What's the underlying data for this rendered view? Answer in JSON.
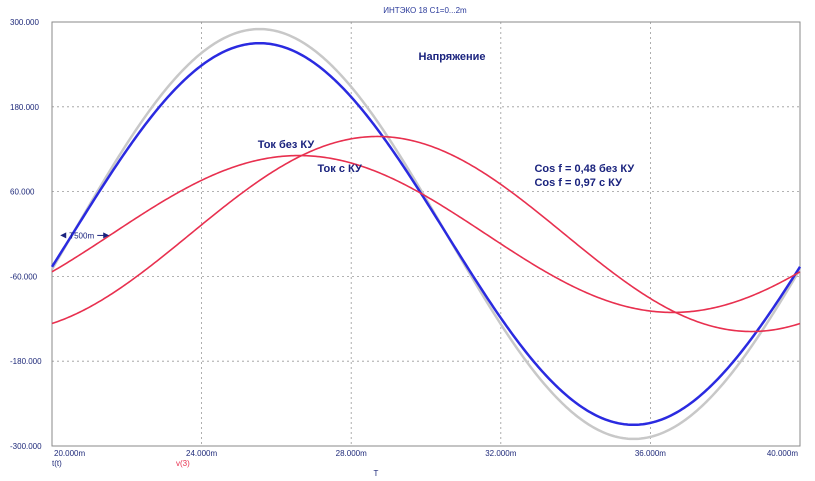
{
  "chart_data": {
    "type": "line",
    "title": "ИНТЭКО 18 С1=0...2m",
    "xlabel": "T",
    "x_unit_labels": [
      "t(t)",
      "v(3)"
    ],
    "xlim": [
      20.0,
      40.0
    ],
    "ylim": [
      -300,
      300
    ],
    "x_ticks": [
      20,
      24,
      28,
      32,
      36,
      40
    ],
    "x_tick_labels": [
      "20.000m",
      "24.000m",
      "28.000m",
      "32.000m",
      "36.000m",
      "40.000m"
    ],
    "y_ticks": [
      300,
      180,
      60,
      -60,
      -180,
      -300
    ],
    "y_tick_labels": [
      "300.000",
      "180.000",
      "60.000",
      "-60.000",
      "-180.000",
      "-300.000"
    ],
    "grid": true,
    "series": [
      {
        "color": "#c8c8c8",
        "width": 2.5,
        "amplitude": 290,
        "phase_ms": 20.55,
        "period_ms": 20
      },
      {
        "color": "#2a2ae0",
        "width": 2.5,
        "amplitude": 270,
        "phase_ms": 20.55,
        "period_ms": 20
      },
      {
        "color": "#e8304f",
        "width": 1.6,
        "amplitude": 138,
        "phase_ms": 23.7,
        "period_ms": 20
      },
      {
        "color": "#e8304f",
        "width": 1.6,
        "amplitude": 111,
        "phase_ms": 21.6,
        "period_ms": 20
      }
    ],
    "annotations": [
      {
        "text": "Напряжение",
        "x": 29.8,
        "y": 246
      },
      {
        "text": "Ток без КУ",
        "x": 25.5,
        "y": 122
      },
      {
        "text": "Ток с КУ",
        "x": 27.1,
        "y": 88
      },
      {
        "text": "Cos f = 0,48 без КУ",
        "x": 32.9,
        "y": 88
      },
      {
        "text": "Cos f = 0,97 с КУ",
        "x": 32.9,
        "y": 68
      }
    ],
    "marker": {
      "text": "T500m",
      "x": 20.3,
      "y": -2
    }
  }
}
